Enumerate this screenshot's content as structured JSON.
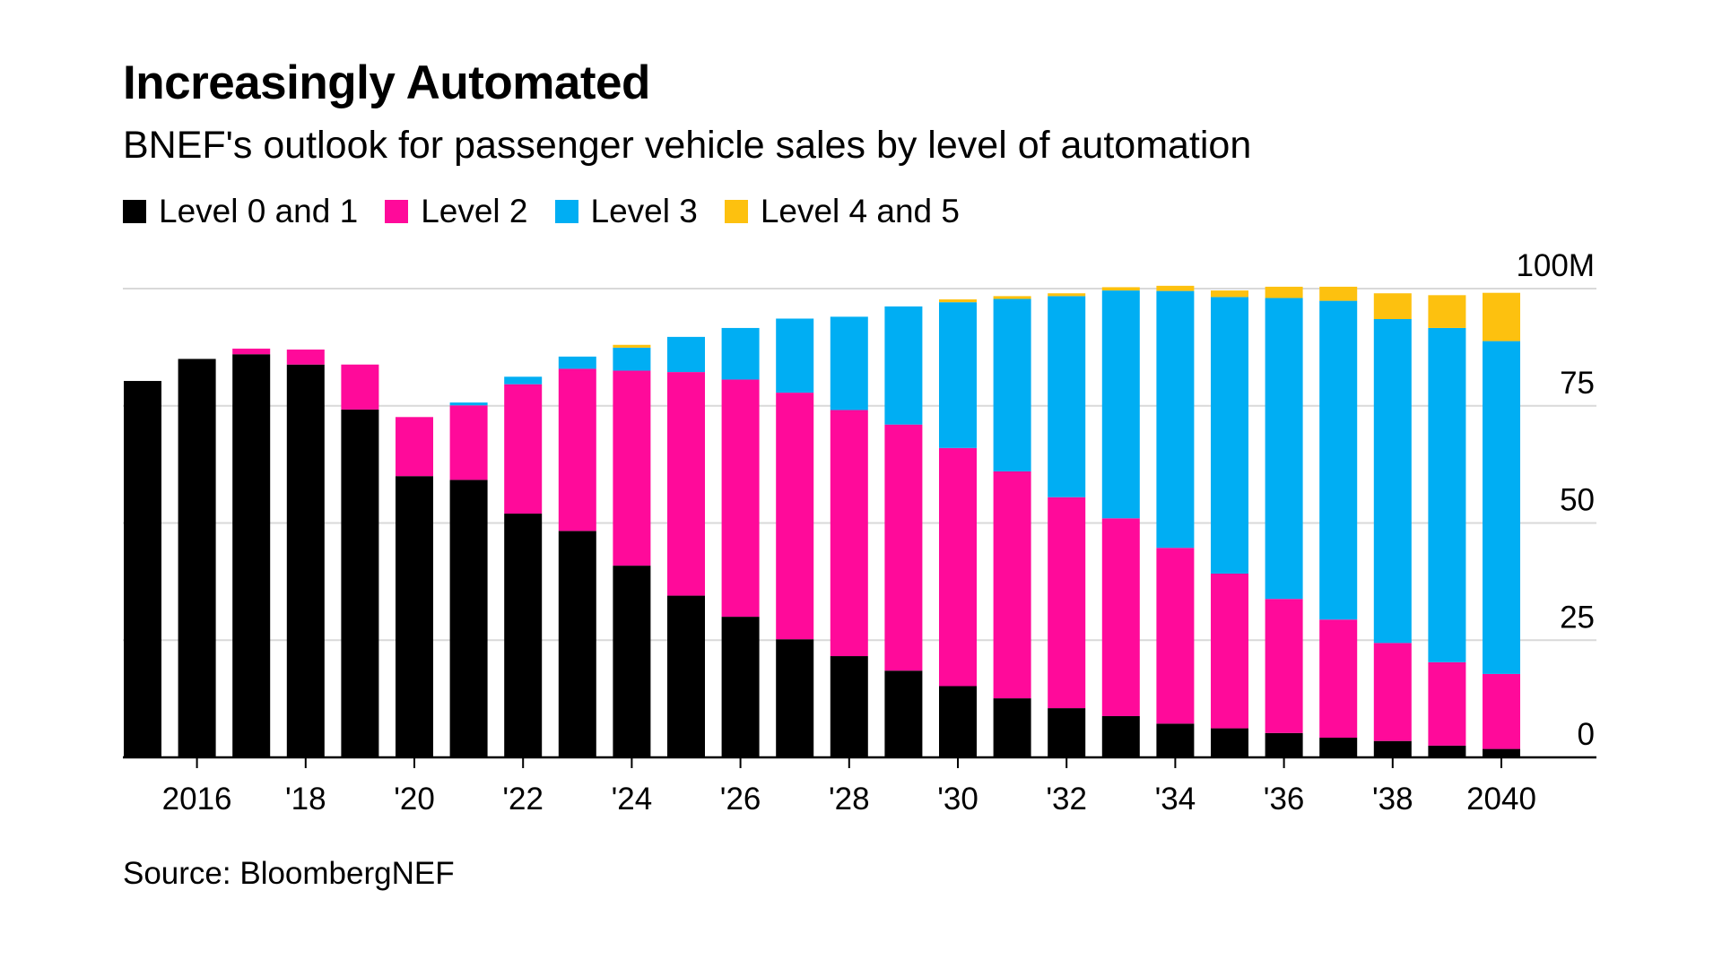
{
  "header": {
    "title": "Increasingly Automated",
    "subtitle": "BNEF's outlook for passenger vehicle sales by level of automation"
  },
  "footer": {
    "source": "Source: BloombergNEF"
  },
  "colors": {
    "level01": "#000000",
    "level2": "#ff0a9a",
    "level3": "#00aef3",
    "level45": "#fdc10f",
    "grid": "#d9d9d9",
    "axis": "#000000"
  },
  "chart_data": {
    "type": "bar",
    "stacked": true,
    "title": "Increasingly Automated",
    "subtitle": "BNEF's outlook for passenger vehicle sales by level of automation",
    "legend_position": "top-left",
    "grid": true,
    "y_axis_side": "right",
    "ylim": [
      0,
      100
    ],
    "y_ticks": [
      0,
      25,
      50,
      75,
      100
    ],
    "y_tick_labels": [
      "0",
      "25",
      "50",
      "75",
      "100M"
    ],
    "categories": [
      "2015",
      "2016",
      "2017",
      "2018",
      "2019",
      "2020",
      "2021",
      "2022",
      "2023",
      "2024",
      "2025",
      "2026",
      "2027",
      "2028",
      "2029",
      "2030",
      "2031",
      "2032",
      "2033",
      "2034",
      "2035",
      "2036",
      "2037",
      "2038",
      "2039",
      "2040"
    ],
    "x_tick_labels": [
      {
        "category": "2016",
        "label": "2016"
      },
      {
        "category": "2018",
        "label": "'18"
      },
      {
        "category": "2020",
        "label": "'20"
      },
      {
        "category": "2022",
        "label": "'22"
      },
      {
        "category": "2024",
        "label": "'24"
      },
      {
        "category": "2026",
        "label": "'26"
      },
      {
        "category": "2028",
        "label": "'28"
      },
      {
        "category": "2030",
        "label": "'30"
      },
      {
        "category": "2032",
        "label": "'32"
      },
      {
        "category": "2034",
        "label": "'34"
      },
      {
        "category": "2036",
        "label": "'36"
      },
      {
        "category": "2038",
        "label": "'38"
      },
      {
        "category": "2040",
        "label": "2040"
      }
    ],
    "series": [
      {
        "name": "Level 0 and 1",
        "color_key": "level01",
        "values": [
          80.3,
          85.0,
          86.0,
          83.8,
          74.2,
          60.0,
          59.2,
          52.0,
          48.3,
          40.9,
          34.5,
          30.0,
          25.2,
          21.6,
          18.5,
          15.2,
          12.6,
          10.5,
          8.8,
          7.2,
          6.2,
          5.2,
          4.2,
          3.5,
          2.5,
          1.8
        ]
      },
      {
        "name": "Level 2",
        "color_key": "level2",
        "values": [
          0,
          0,
          1.2,
          3.2,
          9.6,
          12.6,
          15.9,
          27.6,
          34.6,
          41.6,
          47.7,
          50.6,
          52.6,
          52.5,
          52.5,
          50.8,
          48.4,
          45.0,
          42.2,
          37.5,
          33.0,
          28.6,
          25.2,
          20.9,
          17.8,
          16.0
        ]
      },
      {
        "name": "Level 3",
        "color_key": "level3",
        "values": [
          0,
          0,
          0,
          0,
          0,
          0,
          0.6,
          1.6,
          2.6,
          4.9,
          7.5,
          11.0,
          15.8,
          19.9,
          25.2,
          31.1,
          36.8,
          42.9,
          48.6,
          54.8,
          59.0,
          64.2,
          68.0,
          69.1,
          71.3,
          71.0
        ]
      },
      {
        "name": "Level 4 and 5",
        "color_key": "level45",
        "values": [
          0,
          0,
          0,
          0,
          0,
          0,
          0,
          0,
          0,
          0.6,
          0,
          0,
          0,
          0,
          0,
          0.6,
          0.6,
          0.6,
          0.7,
          1.1,
          1.4,
          2.4,
          3.0,
          5.5,
          7.0,
          10.3
        ]
      }
    ]
  }
}
